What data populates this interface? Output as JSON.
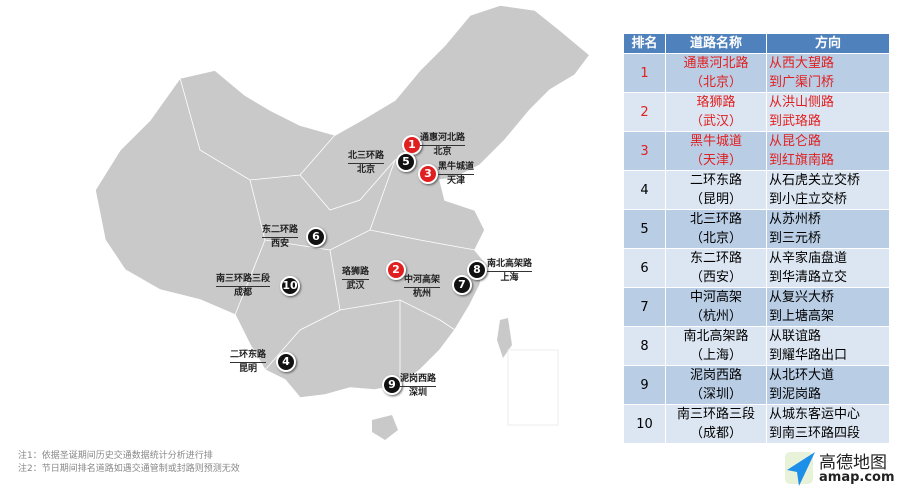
{
  "table": {
    "headers": [
      "排名",
      "道路名称",
      "方向"
    ],
    "rows": [
      {
        "rank": "1",
        "road": "通惠河北路",
        "city": "（北京）",
        "from": "从西大望路",
        "to": "到广渠门桥",
        "highlight": true
      },
      {
        "rank": "2",
        "road": "珞狮路",
        "city": "（武汉）",
        "from": "从洪山侧路",
        "to": "到武珞路",
        "highlight": true
      },
      {
        "rank": "3",
        "road": "黑牛城道",
        "city": "（天津）",
        "from": "从昆仑路",
        "to": "到红旗南路",
        "highlight": true
      },
      {
        "rank": "4",
        "road": "二环东路",
        "city": "（昆明）",
        "from": "从石虎关立交桥",
        "to": "到小庄立交桥",
        "highlight": false
      },
      {
        "rank": "5",
        "road": "北三环路",
        "city": "（北京）",
        "from": "从苏州桥",
        "to": "到三元桥",
        "highlight": false
      },
      {
        "rank": "6",
        "road": "东二环路",
        "city": "（西安）",
        "from": "从辛家庙盘道",
        "to": "到华清路立交",
        "highlight": false
      },
      {
        "rank": "7",
        "road": "中河高架",
        "city": "（杭州）",
        "from": "从复兴大桥",
        "to": "到上塘高架",
        "highlight": false
      },
      {
        "rank": "8",
        "road": "南北高架路",
        "city": "（上海）",
        "from": "从联谊路",
        "to": "到耀华路出口",
        "highlight": false
      },
      {
        "rank": "9",
        "road": "泥岗西路",
        "city": "（深圳）",
        "from": "从北环大道",
        "to": "到泥岗路",
        "highlight": false
      },
      {
        "rank": "10",
        "road": "南三环路三段",
        "city": "（成都）",
        "from": "从城东客运中心",
        "to": "到南三环路四段",
        "highlight": false
      }
    ]
  },
  "markers": [
    {
      "rank": "1",
      "road": "通惠河北路",
      "city": "北京",
      "color": "#e02020"
    },
    {
      "rank": "5",
      "road": "北三环路",
      "city": "北京",
      "color": "#111111"
    },
    {
      "rank": "3",
      "road": "黑牛城道",
      "city": "天津",
      "color": "#e02020"
    },
    {
      "rank": "6",
      "road": "东二环路",
      "city": "西安",
      "color": "#111111"
    },
    {
      "rank": "10",
      "road": "南三环路三段",
      "city": "成都",
      "color": "#111111"
    },
    {
      "rank": "2",
      "road": "珞狮路",
      "city": "武汉",
      "color": "#e02020"
    },
    {
      "rank": "7",
      "road": "中河高架",
      "city": "杭州",
      "color": "#111111"
    },
    {
      "rank": "8",
      "road": "南北高架路",
      "city": "上海",
      "color": "#111111"
    },
    {
      "rank": "4",
      "road": "二环东路",
      "city": "昆明",
      "color": "#111111"
    },
    {
      "rank": "9",
      "road": "泥岗西路",
      "city": "深圳",
      "color": "#111111"
    }
  ],
  "notes": [
    "注1：依据圣诞期间历史交通数据统计分析进行排",
    "注2：节日期间排名道路如遇交通管制或封路则预测无效"
  ],
  "logo": {
    "name": "高德地图",
    "url_text": "amap.com",
    "icon": "paper-plane-icon",
    "color": "#1e8fe8"
  },
  "colors": {
    "header": "#4f81bd",
    "row_dark": "#b9cde5",
    "row_light": "#dce6f2",
    "highlight_text": "#e02020",
    "map_fill": "#c8c8c8"
  }
}
